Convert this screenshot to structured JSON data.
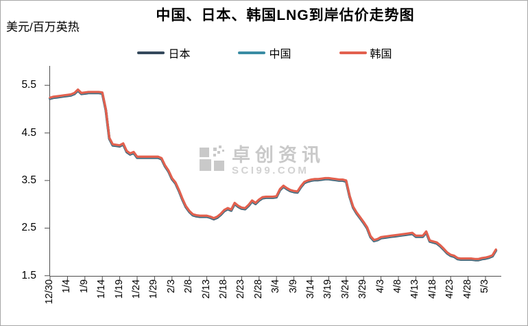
{
  "figure": {
    "title": "中国、日本、韩国LNG到岸估价走势图",
    "unit_label": "美元/百万英热",
    "watermark": {
      "brand": "卓创资讯",
      "site": "SCI99.COM"
    }
  },
  "chart_data": {
    "type": "line",
    "title": "中国、日本、韩国LNG到岸估价走势图",
    "ylabel": "美元/百万英热",
    "grid": false,
    "legend_position": "top",
    "ylim": [
      1.5,
      5.9
    ],
    "y_ticks": [
      1.5,
      2.5,
      3.5,
      4.5,
      5.5
    ],
    "x_tick_labels": [
      "12/30",
      "1/4",
      "1/9",
      "1/14",
      "1/19",
      "1/24",
      "1/29",
      "2/3",
      "2/8",
      "2/13",
      "2/18",
      "2/23",
      "2/28",
      "3/4",
      "3/9",
      "3/14",
      "3/19",
      "3/24",
      "3/29",
      "4/3",
      "4/8",
      "4/13",
      "4/18",
      "4/23",
      "4/28",
      "5/3"
    ],
    "x": [
      "12/30",
      "12/31",
      "1/1",
      "1/2",
      "1/3",
      "1/4",
      "1/5",
      "1/6",
      "1/7",
      "1/8",
      "1/9",
      "1/10",
      "1/11",
      "1/12",
      "1/13",
      "1/14",
      "1/15",
      "1/16",
      "1/17",
      "1/18",
      "1/19",
      "1/20",
      "1/21",
      "1/22",
      "1/23",
      "1/24",
      "1/25",
      "1/26",
      "1/27",
      "1/28",
      "1/29",
      "1/30",
      "1/31",
      "2/1",
      "2/2",
      "2/3",
      "2/4",
      "2/5",
      "2/6",
      "2/7",
      "2/8",
      "2/9",
      "2/10",
      "2/11",
      "2/12",
      "2/13",
      "2/14",
      "2/15",
      "2/16",
      "2/17",
      "2/18",
      "2/19",
      "2/20",
      "2/21",
      "2/22",
      "2/23",
      "2/24",
      "2/25",
      "2/26",
      "2/27",
      "2/28",
      "2/29",
      "3/1",
      "3/2",
      "3/3",
      "3/4",
      "3/5",
      "3/6",
      "3/7",
      "3/8",
      "3/9",
      "3/10",
      "3/11",
      "3/12",
      "3/13",
      "3/14",
      "3/15",
      "3/16",
      "3/17",
      "3/18",
      "3/19",
      "3/20",
      "3/21",
      "3/22",
      "3/23",
      "3/24",
      "3/25",
      "3/26",
      "3/27",
      "3/28",
      "3/29",
      "3/30",
      "3/31",
      "4/1",
      "4/2",
      "4/3",
      "4/4",
      "4/5",
      "4/6",
      "4/7",
      "4/8",
      "4/9",
      "4/10",
      "4/11",
      "4/12",
      "4/13",
      "4/14",
      "4/15",
      "4/16",
      "4/17",
      "4/18",
      "4/19",
      "4/20",
      "4/21",
      "4/22",
      "4/23",
      "4/24",
      "4/25",
      "4/26",
      "4/27",
      "4/28",
      "4/29",
      "4/30",
      "5/1",
      "5/2",
      "5/3",
      "5/4",
      "5/5",
      "5/6"
    ],
    "series": [
      {
        "name": "日本",
        "color": "#35495C",
        "values": [
          5.24,
          5.26,
          5.27,
          5.28,
          5.29,
          5.3,
          5.31,
          5.34,
          5.41,
          5.34,
          5.35,
          5.36,
          5.36,
          5.36,
          5.36,
          5.35,
          5.0,
          4.4,
          4.26,
          4.25,
          4.24,
          4.28,
          4.12,
          4.07,
          4.1,
          4.0,
          4.0,
          4.0,
          4.0,
          4.0,
          4.0,
          4.0,
          3.97,
          3.82,
          3.71,
          3.55,
          3.46,
          3.3,
          3.12,
          2.96,
          2.86,
          2.79,
          2.77,
          2.76,
          2.76,
          2.76,
          2.74,
          2.71,
          2.74,
          2.8,
          2.88,
          2.92,
          2.89,
          3.03,
          2.97,
          2.93,
          2.92,
          2.99,
          3.08,
          3.03,
          3.1,
          3.15,
          3.16,
          3.16,
          3.16,
          3.17,
          3.32,
          3.39,
          3.34,
          3.3,
          3.28,
          3.27,
          3.38,
          3.47,
          3.5,
          3.52,
          3.53,
          3.53,
          3.54,
          3.55,
          3.55,
          3.54,
          3.53,
          3.52,
          3.52,
          3.5,
          3.18,
          2.95,
          2.83,
          2.73,
          2.63,
          2.52,
          2.33,
          2.25,
          2.27,
          2.31,
          2.32,
          2.33,
          2.34,
          2.35,
          2.36,
          2.37,
          2.38,
          2.39,
          2.4,
          2.34,
          2.34,
          2.34,
          2.43,
          2.24,
          2.22,
          2.2,
          2.14,
          2.07,
          1.99,
          1.94,
          1.92,
          1.87,
          1.86,
          1.86,
          1.86,
          1.86,
          1.85,
          1.85,
          1.87,
          1.88,
          1.9,
          1.93,
          2.05
        ]
      },
      {
        "name": "中国",
        "color": "#3A8CA4",
        "values": [
          5.24,
          5.26,
          5.27,
          5.28,
          5.29,
          5.3,
          5.31,
          5.34,
          5.41,
          5.34,
          5.35,
          5.36,
          5.36,
          5.36,
          5.36,
          5.35,
          5.0,
          4.4,
          4.26,
          4.25,
          4.24,
          4.28,
          4.12,
          4.07,
          4.1,
          4.0,
          4.0,
          4.0,
          4.0,
          4.0,
          4.0,
          4.0,
          3.97,
          3.82,
          3.71,
          3.55,
          3.46,
          3.3,
          3.12,
          2.96,
          2.86,
          2.79,
          2.77,
          2.76,
          2.76,
          2.76,
          2.74,
          2.71,
          2.74,
          2.8,
          2.88,
          2.92,
          2.89,
          3.03,
          2.97,
          2.93,
          2.92,
          2.99,
          3.08,
          3.03,
          3.1,
          3.15,
          3.16,
          3.16,
          3.16,
          3.17,
          3.32,
          3.39,
          3.34,
          3.3,
          3.28,
          3.27,
          3.38,
          3.47,
          3.5,
          3.52,
          3.53,
          3.53,
          3.54,
          3.55,
          3.55,
          3.54,
          3.53,
          3.52,
          3.52,
          3.5,
          3.18,
          2.95,
          2.83,
          2.73,
          2.63,
          2.52,
          2.33,
          2.25,
          2.27,
          2.31,
          2.32,
          2.33,
          2.34,
          2.35,
          2.36,
          2.37,
          2.38,
          2.39,
          2.4,
          2.34,
          2.34,
          2.34,
          2.43,
          2.24,
          2.22,
          2.2,
          2.14,
          2.07,
          1.99,
          1.94,
          1.92,
          1.87,
          1.86,
          1.86,
          1.86,
          1.86,
          1.85,
          1.85,
          1.87,
          1.88,
          1.9,
          1.93,
          2.05
        ]
      },
      {
        "name": "韩国",
        "color": "#E2604E",
        "values": [
          5.24,
          5.26,
          5.27,
          5.28,
          5.29,
          5.3,
          5.31,
          5.34,
          5.41,
          5.34,
          5.35,
          5.36,
          5.36,
          5.36,
          5.36,
          5.35,
          5.0,
          4.4,
          4.26,
          4.25,
          4.24,
          4.28,
          4.12,
          4.07,
          4.1,
          4.0,
          4.0,
          4.0,
          4.0,
          4.0,
          4.0,
          4.0,
          3.97,
          3.82,
          3.71,
          3.55,
          3.46,
          3.3,
          3.12,
          2.96,
          2.86,
          2.79,
          2.77,
          2.76,
          2.76,
          2.76,
          2.74,
          2.71,
          2.74,
          2.8,
          2.88,
          2.92,
          2.89,
          3.03,
          2.97,
          2.93,
          2.92,
          2.99,
          3.08,
          3.03,
          3.1,
          3.15,
          3.16,
          3.16,
          3.16,
          3.17,
          3.32,
          3.39,
          3.34,
          3.3,
          3.28,
          3.27,
          3.38,
          3.47,
          3.5,
          3.52,
          3.53,
          3.53,
          3.54,
          3.55,
          3.55,
          3.54,
          3.53,
          3.52,
          3.52,
          3.5,
          3.18,
          2.95,
          2.83,
          2.73,
          2.63,
          2.52,
          2.33,
          2.25,
          2.27,
          2.31,
          2.32,
          2.33,
          2.34,
          2.35,
          2.36,
          2.37,
          2.38,
          2.39,
          2.4,
          2.34,
          2.34,
          2.34,
          2.43,
          2.24,
          2.22,
          2.2,
          2.14,
          2.07,
          1.99,
          1.94,
          1.92,
          1.87,
          1.86,
          1.86,
          1.86,
          1.86,
          1.85,
          1.85,
          1.87,
          1.88,
          1.9,
          1.93,
          2.05
        ]
      }
    ]
  }
}
